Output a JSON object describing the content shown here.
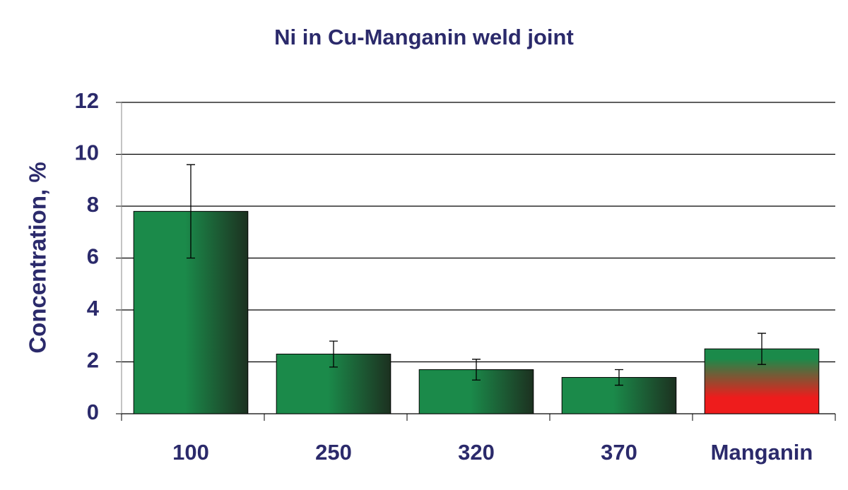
{
  "chart_data": {
    "type": "bar",
    "title": "Ni in Cu-Manganin weld joint",
    "y_label": "Concentration, %",
    "categories": [
      "100",
      "250",
      "320",
      "370",
      "Manganin"
    ],
    "values": [
      7.8,
      2.3,
      1.7,
      1.4,
      2.5
    ],
    "errors": [
      1.8,
      0.5,
      0.4,
      0.3,
      0.6
    ],
    "color": "#1b8a4a",
    "colors": [
      "#1b8a4a",
      "#1b8a4a",
      "#1b8a4a",
      "#1b8a4a",
      "#ee1c1c"
    ],
    "ylim": [
      0,
      12
    ],
    "yticks": [
      0,
      2,
      4,
      6,
      8,
      10,
      12
    ],
    "grid": true
  }
}
